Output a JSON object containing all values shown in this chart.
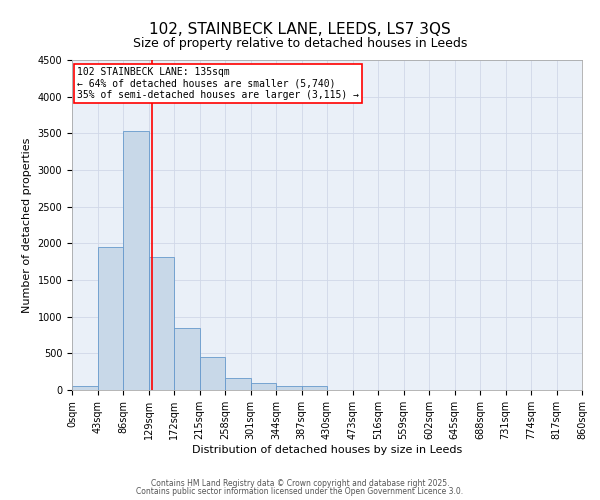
{
  "title_line1": "102, STAINBECK LANE, LEEDS, LS7 3QS",
  "title_line2": "Size of property relative to detached houses in Leeds",
  "xlabel": "Distribution of detached houses by size in Leeds",
  "ylabel": "Number of detached properties",
  "bar_labels": [
    "0sqm",
    "43sqm",
    "86sqm",
    "129sqm",
    "172sqm",
    "215sqm",
    "258sqm",
    "301sqm",
    "344sqm",
    "387sqm",
    "430sqm",
    "473sqm",
    "516sqm",
    "559sqm",
    "602sqm",
    "645sqm",
    "688sqm",
    "731sqm",
    "774sqm",
    "817sqm",
    "860sqm"
  ],
  "bar_values": [
    50,
    1950,
    3530,
    1820,
    850,
    450,
    165,
    100,
    60,
    50,
    0,
    0,
    0,
    0,
    0,
    0,
    0,
    0,
    0,
    0
  ],
  "bar_color": "#c8d8e8",
  "bar_edge_color": "#6699cc",
  "vline_color": "red",
  "annotation_text": "102 STAINBECK LANE: 135sqm\n← 64% of detached houses are smaller (5,740)\n35% of semi-detached houses are larger (3,115) →",
  "ylim": [
    0,
    4500
  ],
  "yticks": [
    0,
    500,
    1000,
    1500,
    2000,
    2500,
    3000,
    3500,
    4000,
    4500
  ],
  "grid_color": "#d0d8e8",
  "bg_color": "#eaf0f8",
  "footnote1": "Contains HM Land Registry data © Crown copyright and database right 2025.",
  "footnote2": "Contains public sector information licensed under the Open Government Licence 3.0.",
  "title_fontsize": 11,
  "subtitle_fontsize": 9,
  "label_fontsize": 8,
  "tick_fontsize": 7,
  "annot_fontsize": 7,
  "footnote_fontsize": 5.5
}
